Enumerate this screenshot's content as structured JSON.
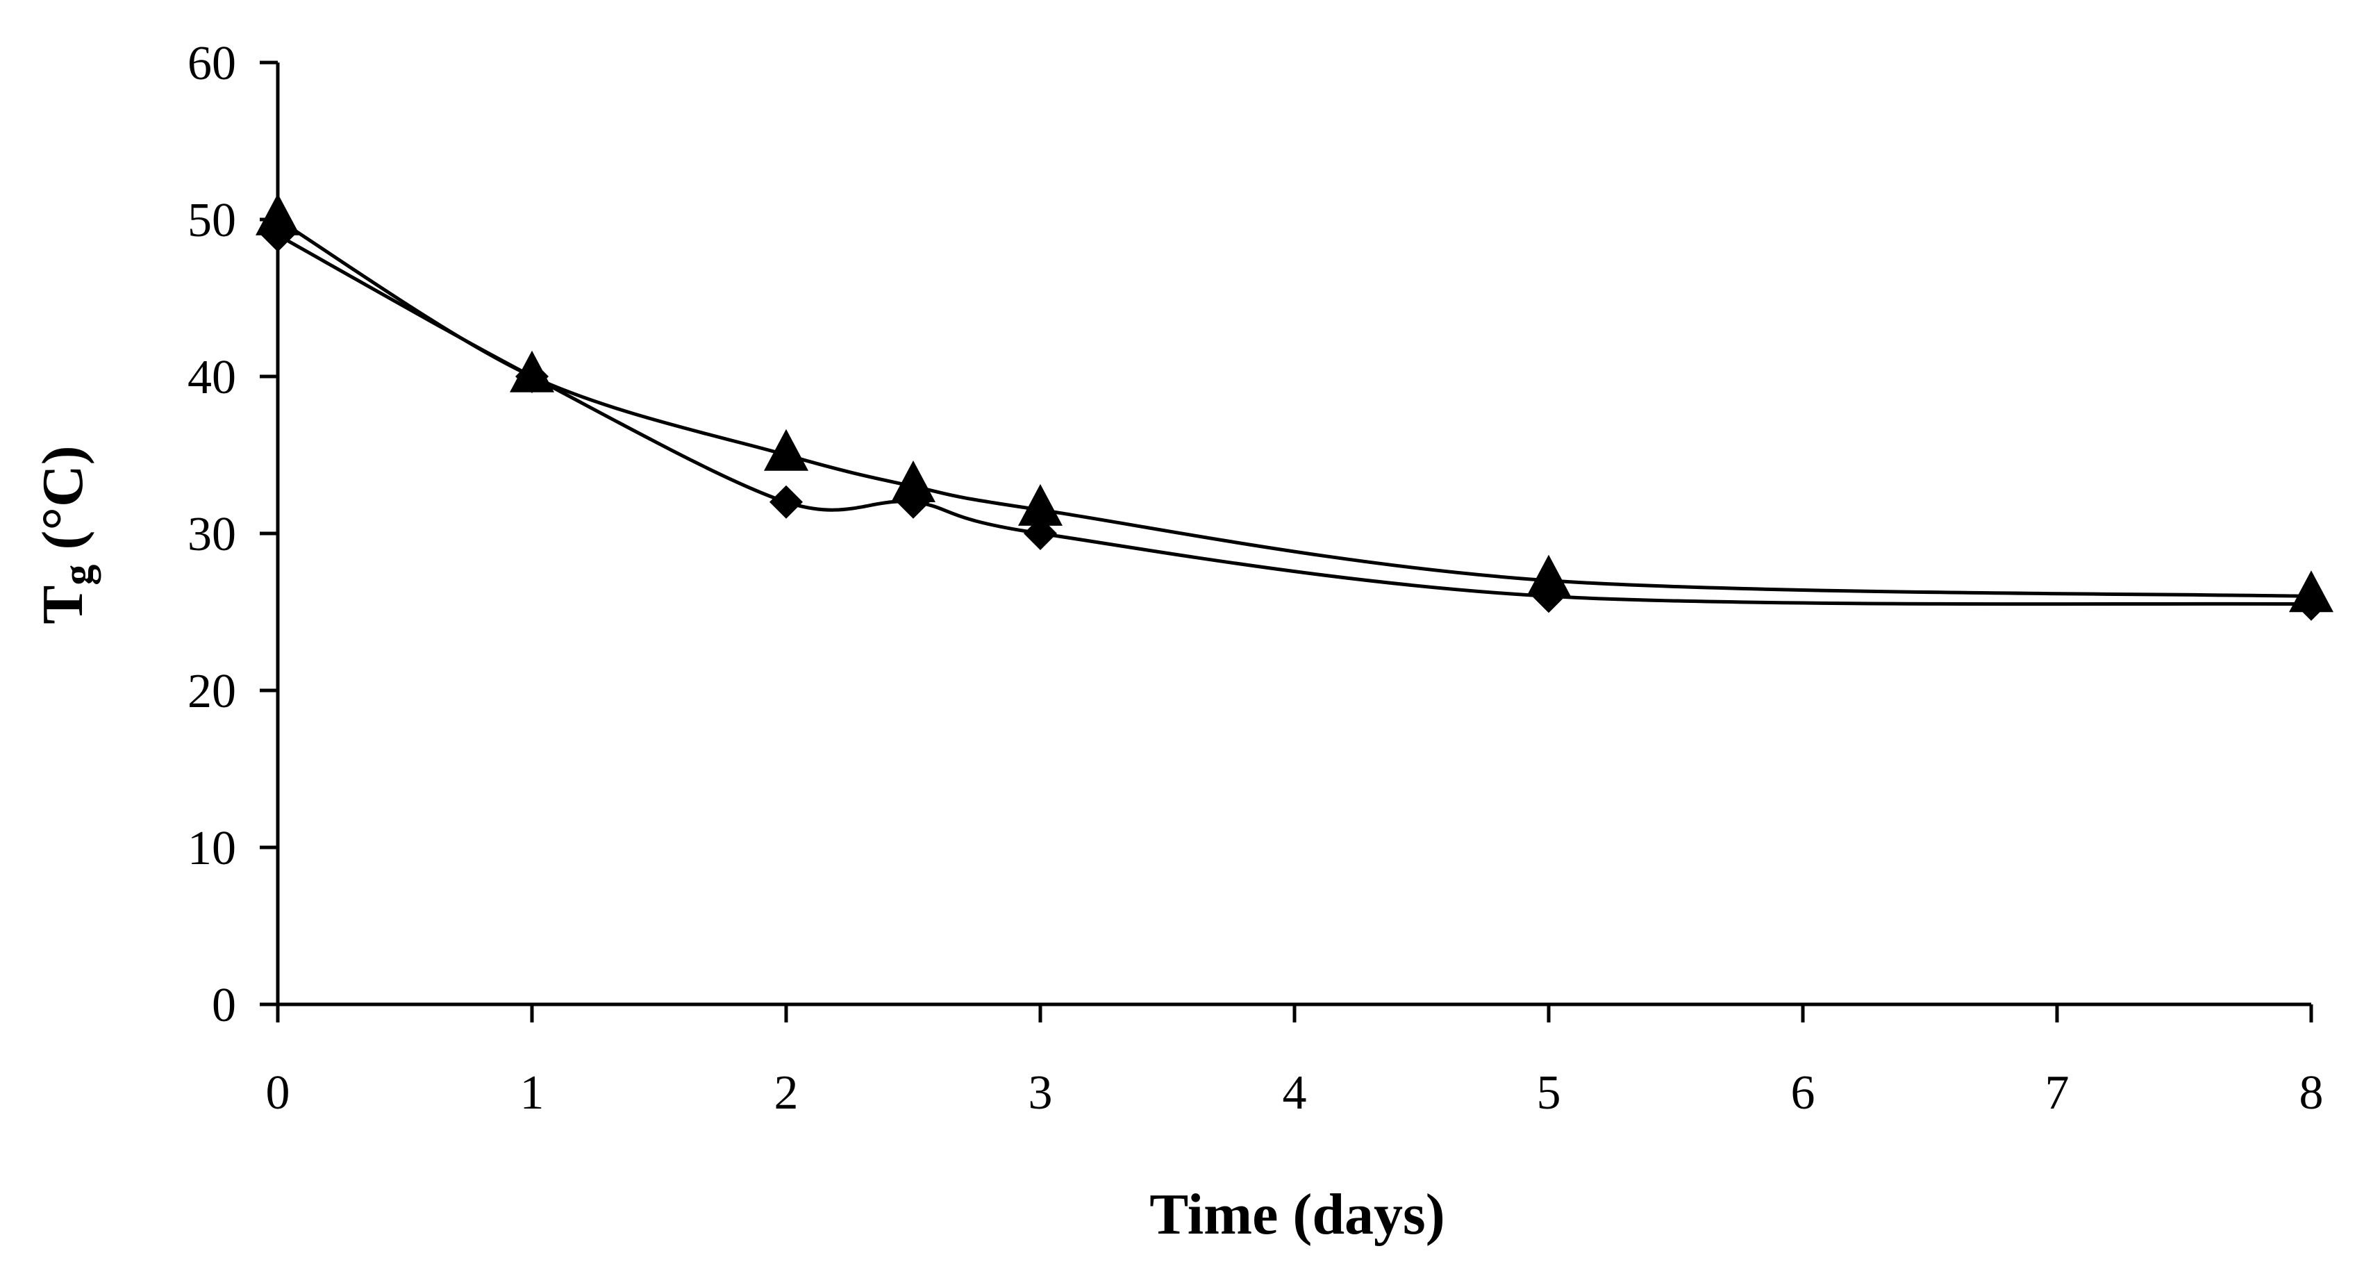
{
  "chart_data": {
    "type": "line",
    "title": "",
    "xlabel": "Time (days)",
    "ylabel_main": "T",
    "ylabel_sub": "g",
    "ylabel_units": " (°C)",
    "xlim": [
      0,
      8
    ],
    "ylim": [
      0,
      60
    ],
    "x_ticks": [
      0,
      1,
      2,
      3,
      4,
      5,
      6,
      7,
      8
    ],
    "y_ticks": [
      0,
      10,
      20,
      30,
      40,
      50,
      60
    ],
    "grid": false,
    "legend": "none",
    "series": [
      {
        "name": "diamond-series",
        "marker": "diamond",
        "x": [
          0,
          1,
          2,
          2.5,
          3,
          5,
          8
        ],
        "values": [
          49,
          40,
          32,
          32,
          30,
          26,
          25.5
        ]
      },
      {
        "name": "triangle-series",
        "marker": "triangle",
        "x": [
          0,
          1,
          2,
          2.5,
          3,
          5,
          8
        ],
        "values": [
          50,
          40,
          35,
          33,
          31.5,
          27,
          26
        ]
      }
    ],
    "colors": {
      "line": "#000000",
      "marker": "#000000",
      "axis": "#000000",
      "background": "#ffffff"
    }
  }
}
